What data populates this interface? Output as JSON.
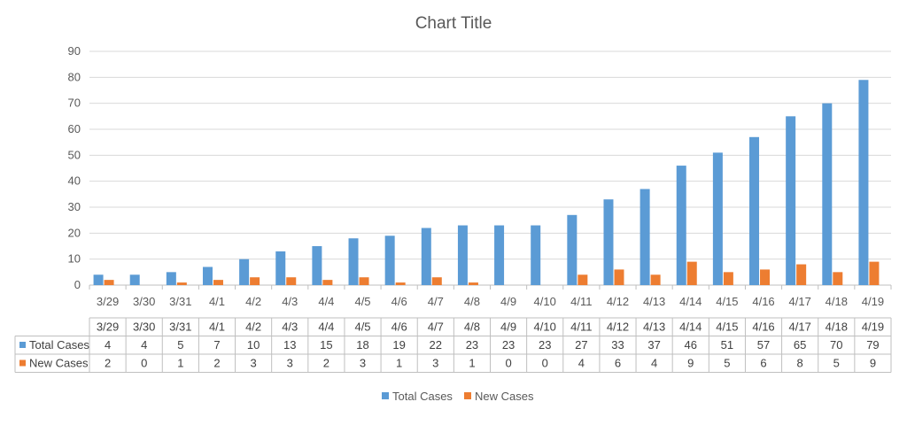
{
  "chart_data": {
    "type": "bar",
    "title": "Chart Title",
    "xlabel": "",
    "ylabel": "",
    "ylim": [
      0,
      90
    ],
    "yticks": [
      0,
      10,
      20,
      30,
      40,
      50,
      60,
      70,
      80,
      90
    ],
    "grid": true,
    "legend_position": "bottom",
    "categories": [
      "3/29",
      "3/30",
      "3/31",
      "4/1",
      "4/2",
      "4/3",
      "4/4",
      "4/5",
      "4/6",
      "4/7",
      "4/8",
      "4/9",
      "4/10",
      "4/11",
      "4/12",
      "4/13",
      "4/14",
      "4/15",
      "4/16",
      "4/17",
      "4/18",
      "4/19"
    ],
    "series": [
      {
        "name": "Total Cases",
        "color": "#5B9BD5",
        "values": [
          4,
          4,
          5,
          7,
          10,
          13,
          15,
          18,
          19,
          22,
          23,
          23,
          23,
          27,
          33,
          37,
          46,
          51,
          57,
          65,
          70,
          79
        ]
      },
      {
        "name": "New Cases",
        "color": "#ED7D31",
        "values": [
          2,
          0,
          1,
          2,
          3,
          3,
          2,
          3,
          1,
          3,
          1,
          0,
          0,
          4,
          6,
          4,
          9,
          5,
          6,
          8,
          5,
          9
        ]
      }
    ],
    "data_table": true
  }
}
